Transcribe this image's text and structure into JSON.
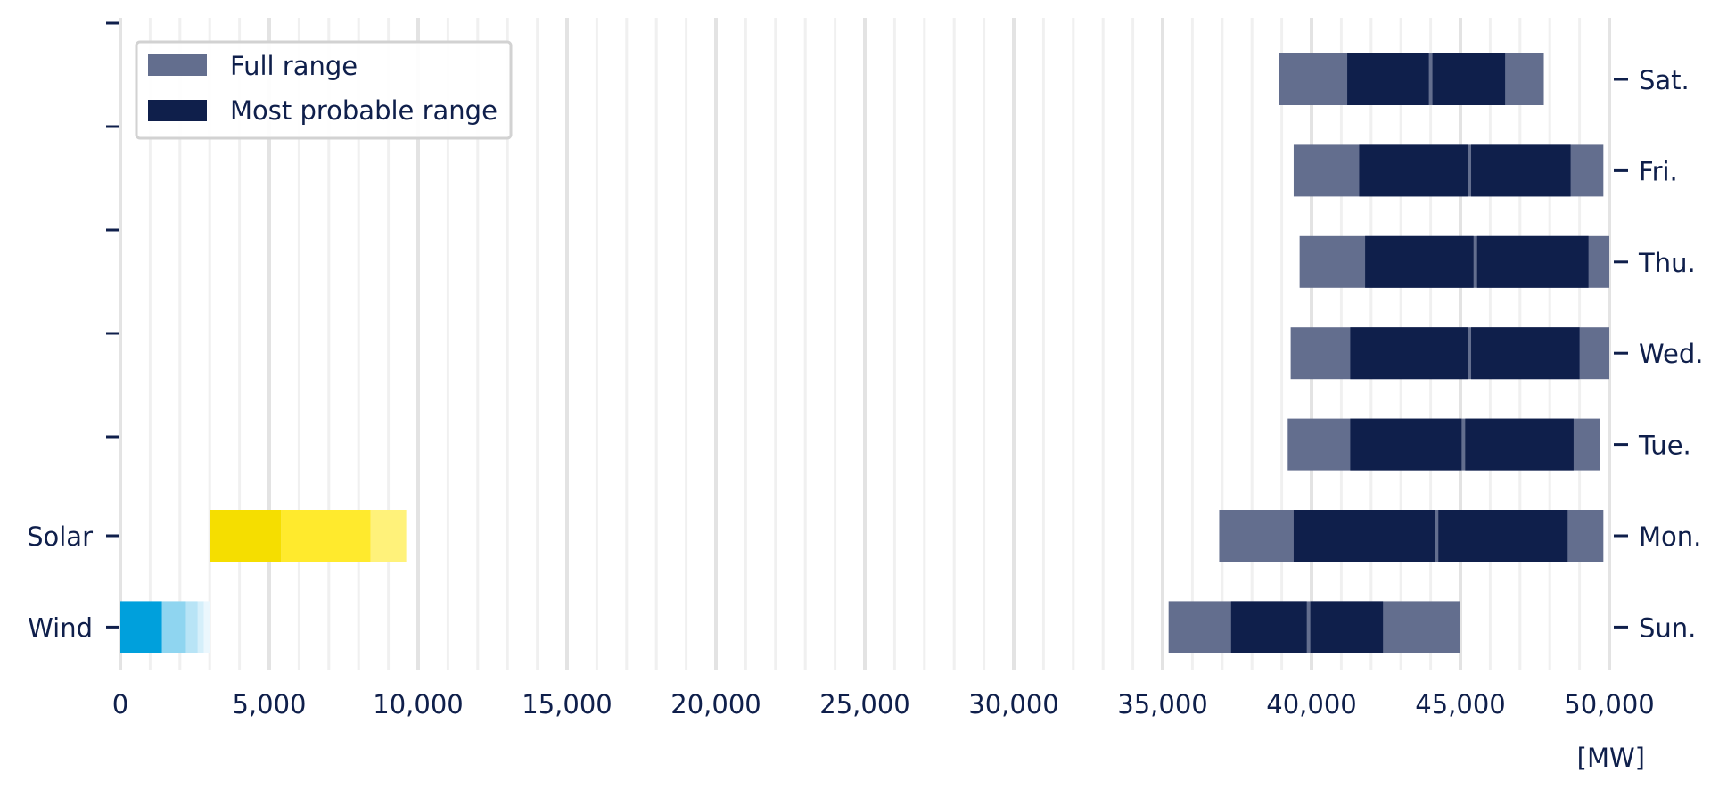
{
  "chart_data": {
    "type": "bar",
    "orientation": "horizontal",
    "unit_label": "[MW]",
    "xlim": [
      0,
      50000
    ],
    "x_ticks": [
      0,
      5000,
      10000,
      15000,
      20000,
      25000,
      30000,
      35000,
      40000,
      45000,
      50000
    ],
    "x_tick_labels": [
      "0",
      "5,000",
      "10,000",
      "15,000",
      "20,000",
      "25,000",
      "30,000",
      "35,000",
      "40,000",
      "45,000",
      "50,000"
    ],
    "grid": true,
    "legend": {
      "placement": "top-left",
      "entries": [
        {
          "label": "Full range",
          "color": "#636e8e"
        },
        {
          "label": "Most probable range",
          "color": "#0f1f4b"
        }
      ]
    },
    "left_axis_labels": [
      "",
      "",
      "",
      "",
      "",
      "Solar",
      "Wind"
    ],
    "right_axis_labels": [
      "Sat.",
      "Fri.",
      "Thu.",
      "Wed.",
      "Tue.",
      "Mon.",
      "Sun."
    ],
    "demand": [
      {
        "day": "Sat.",
        "full": [
          38900,
          47800
        ],
        "probable": [
          41200,
          46500
        ],
        "split": 44000
      },
      {
        "day": "Fri.",
        "full": [
          39400,
          49800
        ],
        "probable": [
          41600,
          48700
        ],
        "split": 45300
      },
      {
        "day": "Thu.",
        "full": [
          39600,
          50000
        ],
        "probable": [
          41800,
          49300
        ],
        "split": 45500
      },
      {
        "day": "Wed.",
        "full": [
          39300,
          50000
        ],
        "probable": [
          41300,
          49000
        ],
        "split": 45300
      },
      {
        "day": "Tue.",
        "full": [
          39200,
          49700
        ],
        "probable": [
          41300,
          48800
        ],
        "split": 45100
      },
      {
        "day": "Mon.",
        "full": [
          36900,
          49800
        ],
        "probable": [
          39400,
          48600
        ],
        "split": 44200
      },
      {
        "day": "Sun.",
        "full": [
          35200,
          45000
        ],
        "probable": [
          37300,
          42400
        ],
        "split": 39900
      }
    ],
    "renewables": [
      {
        "name": "Solar",
        "segments": [
          {
            "range": [
              3000,
              5400
            ],
            "color": "#f5de00"
          },
          {
            "range": [
              5400,
              8400
            ],
            "color": "#ffea2d"
          },
          {
            "range": [
              8400,
              9600
            ],
            "color": "#fff27a"
          }
        ]
      },
      {
        "name": "Wind",
        "segments": [
          {
            "range": [
              0,
              1400
            ],
            "color": "#00a0dc"
          },
          {
            "range": [
              1400,
              2200
            ],
            "color": "#8fd5f0"
          },
          {
            "range": [
              2200,
              2600
            ],
            "color": "#b8e4f6"
          },
          {
            "range": [
              2600,
              2800
            ],
            "color": "#d5effa"
          },
          {
            "range": [
              2800,
              3000
            ],
            "color": "#ebf7fd"
          }
        ]
      }
    ]
  }
}
